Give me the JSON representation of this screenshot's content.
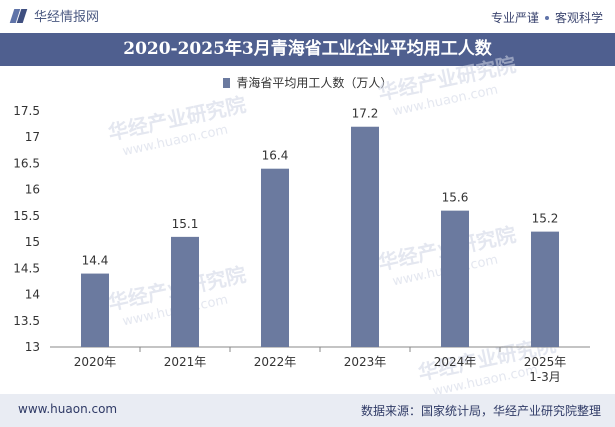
{
  "header": {
    "brand": "华经情报网",
    "slogan_left": "专业严谨",
    "slogan_right": "客观科学"
  },
  "title": "2020-2025年3月青海省工业企业平均用工人数",
  "legend_label": "青海省平均用工人数（万人）",
  "watermark": {
    "cn": "华经产业研究院",
    "en": "www.huaon.com"
  },
  "footer": {
    "website": "www.huaon.com",
    "source": "数据来源：国家统计局，华经产业研究院整理"
  },
  "colors": {
    "bar": "#6b7a9f",
    "title_bg": "#4f5f8f",
    "footer_bg": "#e9ecf3"
  },
  "chart_data": {
    "type": "bar",
    "title": "2020-2025年3月青海省工业企业平均用工人数",
    "categories": [
      "2020年",
      "2021年",
      "2022年",
      "2023年",
      "2024年",
      "2025年\n1-3月"
    ],
    "series": [
      {
        "name": "青海省平均用工人数（万人）",
        "values": [
          14.4,
          15.1,
          16.4,
          17.2,
          15.6,
          15.2
        ]
      }
    ],
    "ylim": [
      13,
      17.5
    ],
    "yticks": [
      "13",
      "13.5",
      "14",
      "14.5",
      "15",
      "15.5",
      "16",
      "16.5",
      "17",
      "17.5"
    ],
    "xlabel": "",
    "ylabel": "",
    "grid": false,
    "legend": "top-center"
  }
}
